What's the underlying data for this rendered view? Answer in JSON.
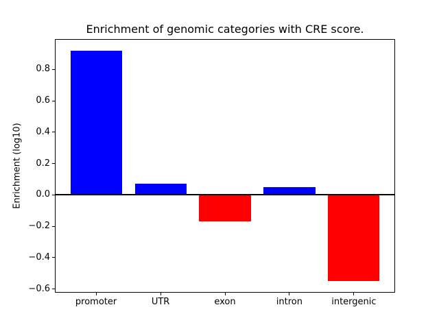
{
  "chart_data": {
    "type": "bar",
    "title": "Enrichment of genomic categories with CRE score.",
    "xlabel": "",
    "ylabel": "Enrichment (log10)",
    "categories": [
      "promoter",
      "UTR",
      "exon",
      "intron",
      "intergenic"
    ],
    "values": [
      0.92,
      0.07,
      -0.17,
      0.05,
      -0.55
    ],
    "bar_colors": [
      "#0000ff",
      "#0000ff",
      "#ff0000",
      "#0000ff",
      "#ff0000"
    ],
    "positive_color": "#0000ff",
    "negative_color": "#ff0000",
    "yticks": [
      -0.6,
      -0.4,
      -0.2,
      0.0,
      0.2,
      0.4,
      0.6,
      0.8
    ],
    "ytick_labels": [
      "−0.6",
      "−0.4",
      "−0.2",
      "0.0",
      "0.2",
      "0.4",
      "0.6",
      "0.8"
    ],
    "ylim": [
      -0.623,
      0.993
    ],
    "xlim": [
      -0.64,
      4.64
    ],
    "bar_width_fraction": 0.8,
    "zero_line": true,
    "grid": false,
    "legend": false,
    "background_color": "#ffffff",
    "axis_color": "#000000"
  }
}
